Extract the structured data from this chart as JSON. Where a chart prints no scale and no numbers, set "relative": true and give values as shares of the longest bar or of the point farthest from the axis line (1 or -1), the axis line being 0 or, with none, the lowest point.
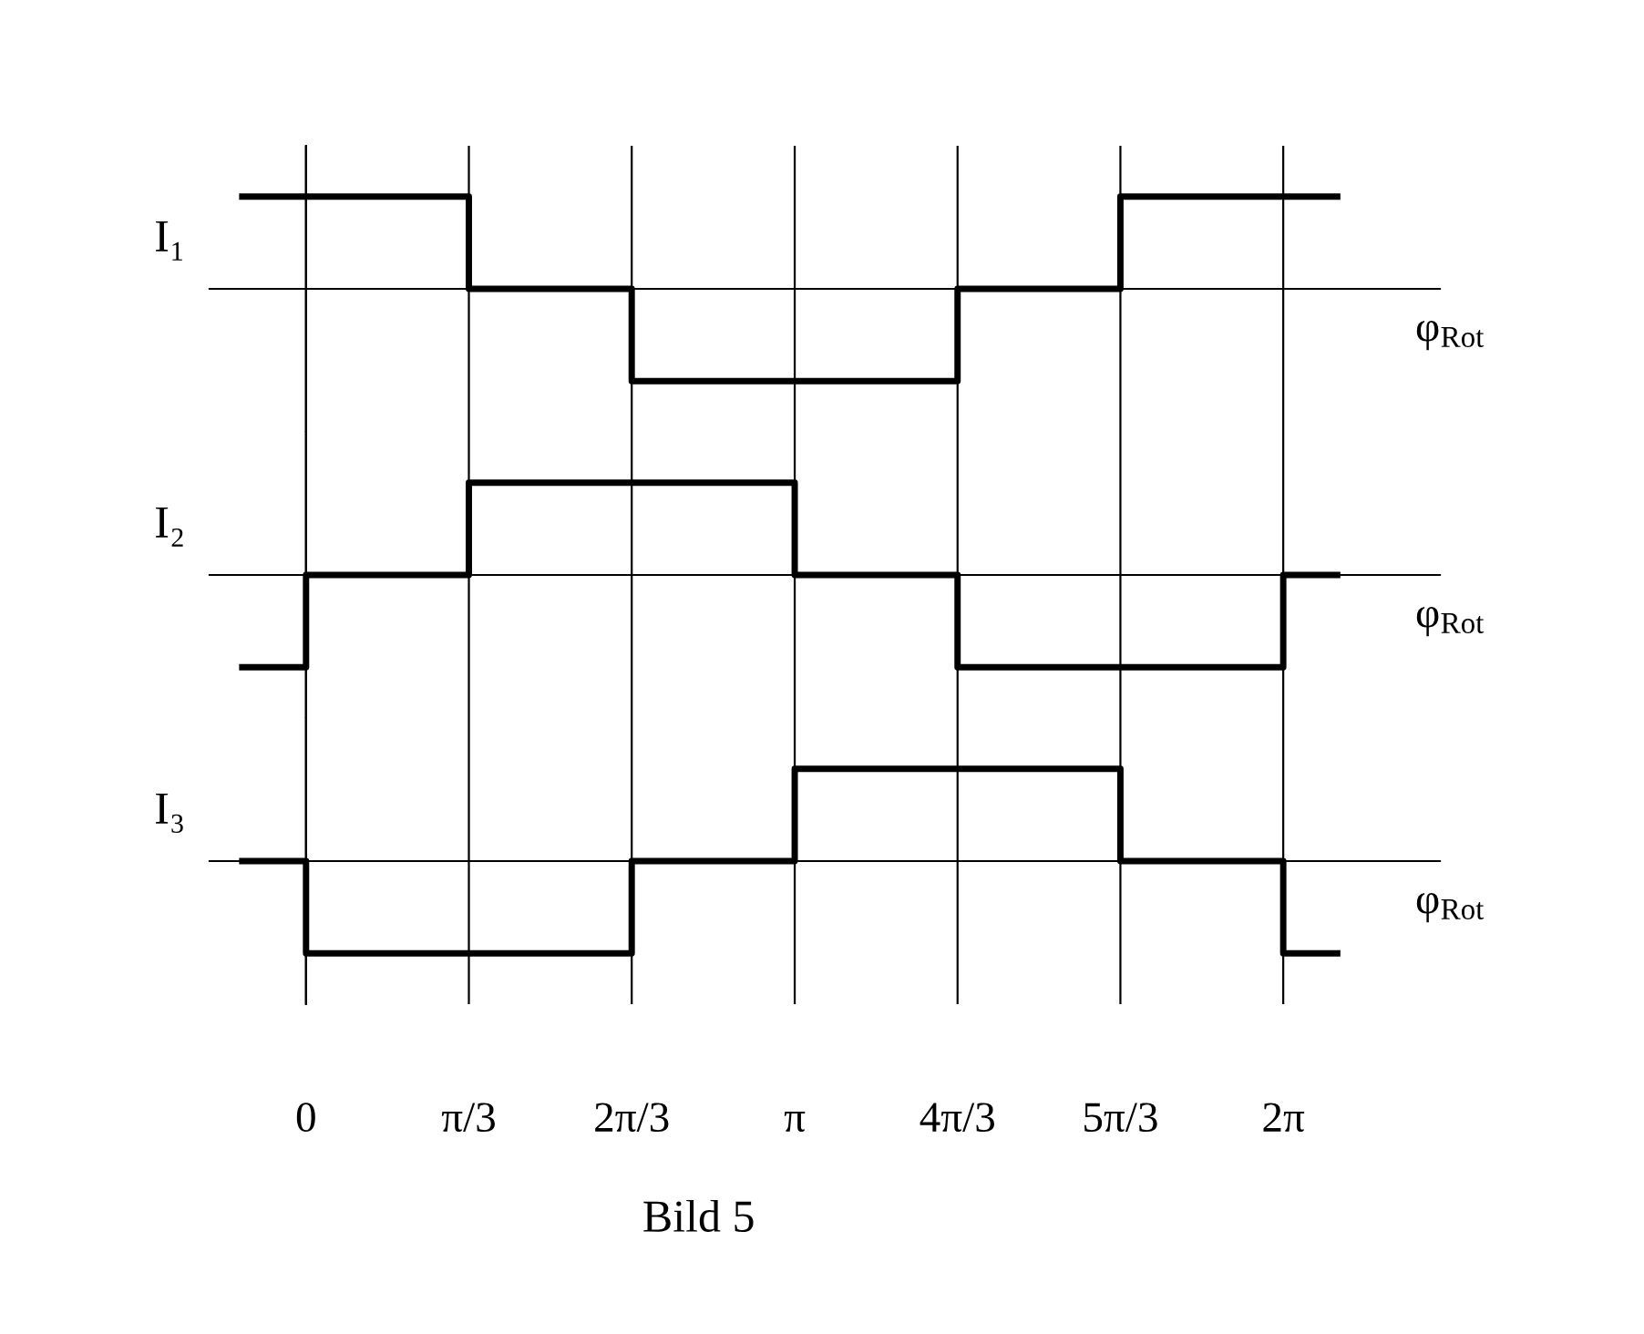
{
  "chart_data": [
    {
      "type": "step",
      "relative": true,
      "ylabel": "I₁",
      "xlabel": "φ$_{Rot}$",
      "grid": "x",
      "tick_labels": false,
      "xlim": [
        -0.62,
        7.29
      ],
      "xticks": [
        {
          "value": 0,
          "label": null
        },
        {
          "value": 1.047,
          "label": null
        },
        {
          "value": 2.094,
          "label": null
        },
        {
          "value": 3.142,
          "label": null
        },
        {
          "value": 4.189,
          "label": null
        },
        {
          "value": 5.236,
          "label": null
        },
        {
          "value": 6.283,
          "label": null
        }
      ],
      "series": [
        {
          "color": "#000000",
          "x": [
            -0.41,
            0,
            1.047,
            2.094,
            3.142,
            4.189,
            5.236,
            6.283,
            6.63
          ],
          "values": [
            1,
            1,
            0,
            -1,
            -1,
            0,
            1,
            1,
            1
          ]
        }
      ]
    },
    {
      "type": "step",
      "relative": true,
      "ylabel": "I₂",
      "xlabel": "φ$_{Rot}$",
      "grid": "x",
      "tick_labels": false,
      "xlim": [
        -0.62,
        7.29
      ],
      "xticks": [
        {
          "value": 0,
          "label": null
        },
        {
          "value": 1.047,
          "label": null
        },
        {
          "value": 2.094,
          "label": null
        },
        {
          "value": 3.142,
          "label": null
        },
        {
          "value": 4.189,
          "label": null
        },
        {
          "value": 5.236,
          "label": null
        },
        {
          "value": 6.283,
          "label": null
        }
      ],
      "series": [
        {
          "color": "#000000",
          "x": [
            -0.41,
            0,
            1.047,
            2.094,
            3.142,
            4.189,
            5.236,
            6.283,
            6.63
          ],
          "values": [
            -1,
            0,
            1,
            1,
            0,
            -1,
            -1,
            0,
            0
          ]
        }
      ]
    },
    {
      "type": "step",
      "relative": true,
      "ylabel": "I₃",
      "xlabel": "φ$_{Rot}$",
      "grid": "x",
      "tick_labels": "x",
      "xlim": [
        -0.62,
        7.29
      ],
      "xticks": [
        {
          "value": 0,
          "label": "0"
        },
        {
          "value": 1.047,
          "label": "π/3"
        },
        {
          "value": 2.094,
          "label": "2π/3"
        },
        {
          "value": 3.142,
          "label": "π"
        },
        {
          "value": 4.189,
          "label": "4π/3"
        },
        {
          "value": 5.236,
          "label": "5π/3"
        },
        {
          "value": 6.283,
          "label": "2π"
        }
      ],
      "series": [
        {
          "color": "#000000",
          "x": [
            -0.41,
            0,
            1.047,
            2.094,
            3.142,
            4.189,
            5.236,
            6.283,
            6.63
          ],
          "values": [
            0,
            -1,
            -1,
            0,
            1,
            1,
            0,
            -1,
            -1
          ]
        }
      ],
      "annotations": [
        "Bild 5"
      ]
    }
  ]
}
